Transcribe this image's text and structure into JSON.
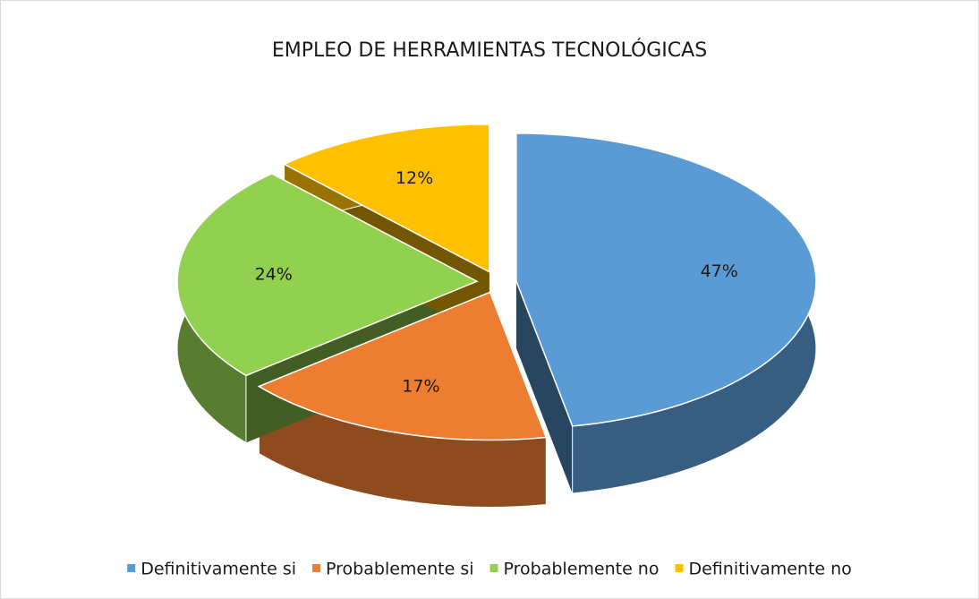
{
  "chart_data": {
    "type": "pie",
    "title": "EMPLEO DE HERRAMIENTAS TECNOLÓGICAS",
    "categories": [
      "Definitivamente si",
      "Probablemente si",
      "Probablemente no",
      "Definitivamente no"
    ],
    "values": [
      47,
      17,
      24,
      12
    ],
    "value_labels": [
      "47%",
      "17%",
      "24%",
      "12%"
    ],
    "colors": [
      "#5b9bd5",
      "#ed7d31",
      "#92d050",
      "#ffc000"
    ],
    "legend": "bottom"
  }
}
